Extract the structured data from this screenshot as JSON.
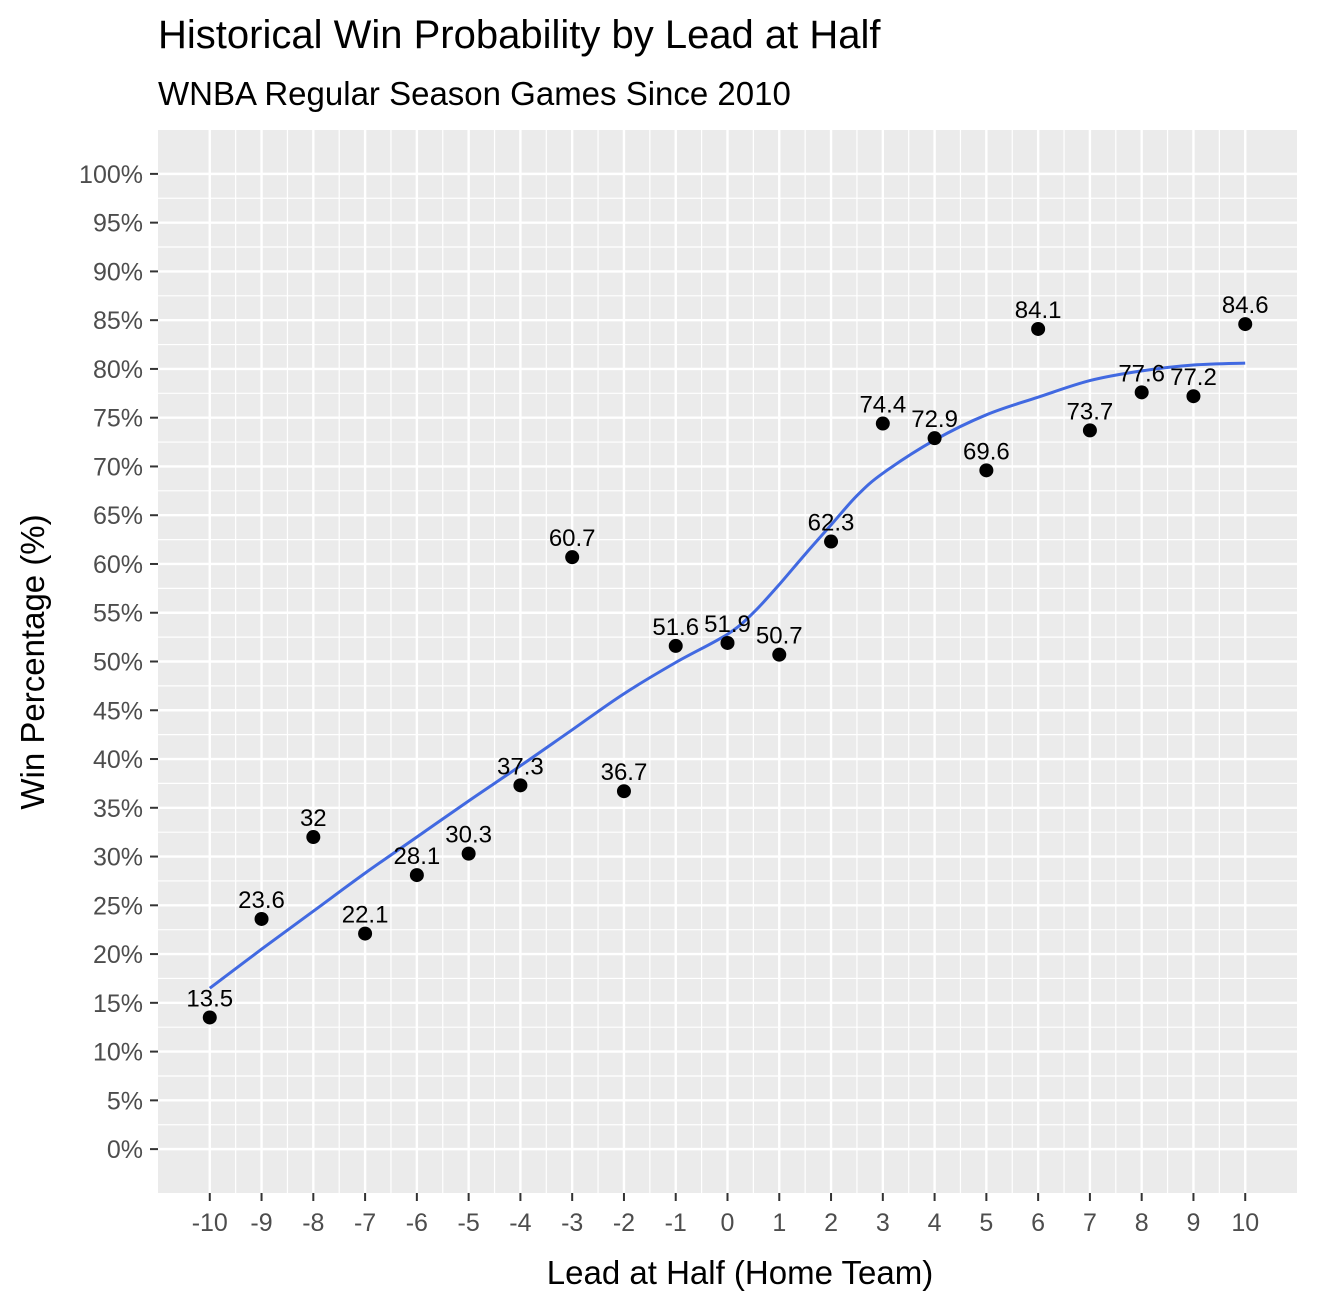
{
  "chart_data": {
    "type": "scatter",
    "title": "Historical Win Probability by Lead at Half",
    "subtitle": "WNBA Regular Season Games Since 2010",
    "xlabel": "Lead at Half (Home Team)",
    "ylabel": "Win Percentage (%)",
    "xlim": [
      -11,
      11
    ],
    "ylim": [
      -4.5,
      104.5
    ],
    "x_ticks": [
      "-10",
      "-9",
      "-8",
      "-7",
      "-6",
      "-5",
      "-4",
      "-3",
      "-2",
      "-1",
      "0",
      "1",
      "2",
      "3",
      "4",
      "5",
      "6",
      "7",
      "8",
      "9",
      "10"
    ],
    "y_ticks": [
      "0%",
      "5%",
      "10%",
      "15%",
      "20%",
      "25%",
      "30%",
      "35%",
      "40%",
      "45%",
      "50%",
      "55%",
      "60%",
      "65%",
      "70%",
      "75%",
      "80%",
      "85%",
      "90%",
      "95%",
      "100%"
    ],
    "grid": true,
    "x": [
      -10,
      -9,
      -8,
      -7,
      -6,
      -5,
      -4,
      -3,
      -2,
      -1,
      0,
      1,
      2,
      3,
      4,
      5,
      6,
      7,
      8,
      9,
      10
    ],
    "values": [
      13.5,
      23.6,
      32,
      22.1,
      28.1,
      30.3,
      37.3,
      60.7,
      36.7,
      51.6,
      51.9,
      50.7,
      62.3,
      74.4,
      72.9,
      69.6,
      84.1,
      73.7,
      77.6,
      77.2,
      84.6
    ],
    "labels": [
      "13.5",
      "23.6",
      "32",
      "22.1",
      "28.1",
      "30.3",
      "37.3",
      "60.7",
      "36.7",
      "51.6",
      "51.9",
      "50.7",
      "62.3",
      "74.4",
      "72.9",
      "69.6",
      "84.1",
      "73.7",
      "77.6",
      "77.2",
      "84.6"
    ],
    "trend": {
      "x": [
        -10,
        -9,
        -8,
        -7,
        -6,
        -5,
        -4,
        -3,
        -2,
        -1,
        0,
        0.5,
        1,
        1.5,
        2,
        2.5,
        3,
        4,
        5,
        6,
        7,
        8,
        9,
        10
      ],
      "y": [
        16.5,
        20.5,
        24.4,
        28.3,
        32.0,
        35.7,
        39.3,
        43.0,
        46.7,
        49.9,
        52.8,
        55.0,
        57.9,
        61.0,
        64.0,
        67.0,
        69.3,
        72.7,
        75.3,
        77.1,
        78.8,
        79.8,
        80.4,
        80.6
      ]
    },
    "colors": {
      "panel": "#ebebeb",
      "grid": "#ffffff",
      "point": "#000000",
      "trend": "#4169e1"
    }
  }
}
